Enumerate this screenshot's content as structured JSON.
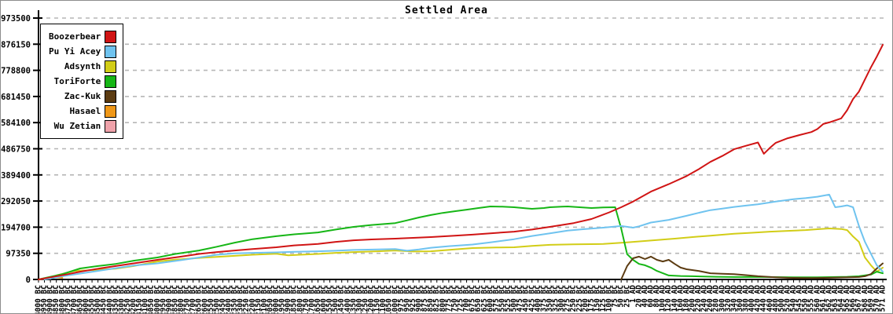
{
  "chart_data": {
    "type": "line",
    "title": "Settled Area",
    "xlabel": "",
    "ylabel": "",
    "ylim": [
      0,
      973500
    ],
    "grid": "horizontal-dashed",
    "legend_position": "top-left",
    "y_ticks": [
      0,
      97350,
      194700,
      292050,
      389400,
      486750,
      584100,
      681450,
      778800,
      876150,
      973500
    ],
    "y_tick_labels": [
      "0",
      "97350",
      "194700",
      "292050",
      "389400",
      "486750",
      "584100",
      "681450",
      "778800",
      "876150",
      "973500"
    ],
    "x_labels": [
      "4000 BC",
      "3950 BC",
      "3900 BC",
      "3850 BC",
      "3800 BC",
      "3750 BC",
      "3700 BC",
      "3650 BC",
      "3600 BC",
      "3550 BC",
      "3500 BC",
      "3450 BC",
      "3400 BC",
      "3350 BC",
      "3300 BC",
      "3250 BC",
      "3200 BC",
      "3150 BC",
      "3100 BC",
      "3050 BC",
      "3000 BC",
      "2950 BC",
      "2900 BC",
      "2850 BC",
      "2800 BC",
      "2750 BC",
      "2700 BC",
      "2650 BC",
      "2600 BC",
      "2550 BC",
      "2500 BC",
      "2450 BC",
      "2400 BC",
      "2350 BC",
      "2300 BC",
      "2250 BC",
      "2200 BC",
      "2150 BC",
      "2100 BC",
      "2050 BC",
      "2000 BC",
      "1950 BC",
      "1900 BC",
      "1850 BC",
      "1800 BC",
      "1750 BC",
      "1700 BC",
      "1650 BC",
      "1600 BC",
      "1550 BC",
      "1500 BC",
      "1450 BC",
      "1400 BC",
      "1350 BC",
      "1300 BC",
      "1250 BC",
      "1200 BC",
      "1150 BC",
      "1100 BC",
      "1050 BC",
      "1000 BC",
      "975 BC",
      "950 BC",
      "925 BC",
      "900 BC",
      "875 BC",
      "850 BC",
      "825 BC",
      "800 BC",
      "775 BC",
      "750 BC",
      "725 BC",
      "700 BC",
      "675 BC",
      "650 BC",
      "625 BC",
      "600 BC",
      "575 BC",
      "550 BC",
      "525 BC",
      "500 BC",
      "475 BC",
      "450 BC",
      "425 BC",
      "400 BC",
      "375 BC",
      "350 BC",
      "325 BC",
      "300 BC",
      "275 BC",
      "250 BC",
      "225 BC",
      "200 BC",
      "175 BC",
      "150 BC",
      "125 BC",
      "100 BC",
      "75 BC",
      "50 BC",
      "25 BC",
      "1 AD",
      "20 AD",
      "40 AD",
      "60 AD",
      "80 AD",
      "100 AD",
      "120 AD",
      "140 AD",
      "160 AD",
      "180 AD",
      "200 AD",
      "220 AD",
      "240 AD",
      "260 AD",
      "280 AD",
      "300 AD",
      "320 AD",
      "340 AD",
      "360 AD",
      "380 AD",
      "400 AD",
      "420 AD",
      "440 AD",
      "460 AD",
      "480 AD",
      "500 AD",
      "520 AD",
      "540 AD",
      "545 AD",
      "550 AD",
      "555 AD",
      "560 AD",
      "561 AD",
      "562 AD",
      "563 AD",
      "564 AD",
      "565 AD",
      "566 AD",
      "567 AD",
      "568 AD",
      "569 AD",
      "570 AD",
      "571 AD"
    ],
    "series": [
      {
        "name": "Wu Zetian",
        "color": "#efa2aa",
        "points": [
          [
            0,
            0
          ],
          [
            1,
            2000
          ],
          [
            2,
            3000
          ]
        ]
      },
      {
        "name": "Hasael",
        "color": "#f09818",
        "points": [
          [
            0,
            0
          ],
          [
            1,
            4000
          ],
          [
            2,
            7000
          ],
          [
            3,
            8000
          ],
          [
            4,
            6000
          ]
        ]
      },
      {
        "name": "Adsynth",
        "color": "#d2cd17",
        "points": [
          [
            1,
            0
          ],
          [
            3,
            15000
          ],
          [
            6,
            32000
          ],
          [
            10,
            36000
          ],
          [
            13,
            40000
          ],
          [
            16,
            50000
          ],
          [
            20,
            67000
          ],
          [
            23,
            74000
          ],
          [
            27,
            80000
          ],
          [
            30,
            84000
          ],
          [
            33,
            88000
          ],
          [
            36,
            92000
          ],
          [
            40,
            96000
          ],
          [
            42,
            90000
          ],
          [
            44,
            92000
          ],
          [
            47,
            95000
          ],
          [
            50,
            99000
          ],
          [
            53,
            102000
          ],
          [
            57,
            105000
          ],
          [
            60,
            108000
          ],
          [
            63,
            104000
          ],
          [
            66,
            105000
          ],
          [
            70,
            112000
          ],
          [
            73,
            117000
          ],
          [
            77,
            119000
          ],
          [
            80,
            120000
          ],
          [
            83,
            125000
          ],
          [
            86,
            129000
          ],
          [
            90,
            131000
          ],
          [
            95,
            132000
          ],
          [
            99,
            138000
          ],
          [
            103,
            145000
          ],
          [
            107,
            152000
          ],
          [
            110,
            158000
          ],
          [
            113,
            163000
          ],
          [
            117,
            170000
          ],
          [
            120,
            174000
          ],
          [
            123,
            178000
          ],
          [
            126,
            181000
          ],
          [
            129,
            184000
          ],
          [
            131,
            187000
          ],
          [
            133,
            190000
          ],
          [
            135,
            188000
          ],
          [
            136,
            184000
          ],
          [
            137,
            160000
          ],
          [
            138,
            140000
          ],
          [
            139,
            82000
          ],
          [
            140,
            53000
          ],
          [
            141,
            29000
          ],
          [
            142,
            44000
          ]
        ]
      },
      {
        "name": "ToriForte",
        "color": "#16b616",
        "points": [
          [
            0,
            0
          ],
          [
            2,
            10000
          ],
          [
            4,
            20000
          ],
          [
            7,
            41000
          ],
          [
            10,
            50000
          ],
          [
            13,
            58000
          ],
          [
            16,
            70000
          ],
          [
            20,
            82000
          ],
          [
            23,
            95000
          ],
          [
            27,
            108000
          ],
          [
            30,
            122000
          ],
          [
            33,
            137000
          ],
          [
            36,
            150000
          ],
          [
            40,
            161000
          ],
          [
            43,
            168000
          ],
          [
            47,
            175000
          ],
          [
            50,
            186000
          ],
          [
            53,
            196000
          ],
          [
            56,
            203000
          ],
          [
            60,
            210000
          ],
          [
            62,
            220000
          ],
          [
            64,
            231000
          ],
          [
            66,
            240000
          ],
          [
            68,
            248000
          ],
          [
            70,
            254000
          ],
          [
            72,
            260000
          ],
          [
            74,
            266000
          ],
          [
            76,
            272000
          ],
          [
            78,
            271000
          ],
          [
            80,
            269000
          ],
          [
            82,
            265000
          ],
          [
            83,
            263000
          ],
          [
            85,
            266000
          ],
          [
            86,
            269000
          ],
          [
            88,
            271000
          ],
          [
            89,
            272000
          ],
          [
            91,
            269000
          ],
          [
            93,
            266000
          ],
          [
            95,
            268000
          ],
          [
            97,
            269000
          ],
          [
            98,
            190000
          ],
          [
            99,
            94000
          ],
          [
            100,
            73000
          ],
          [
            101,
            58000
          ],
          [
            102,
            53000
          ],
          [
            103,
            44000
          ],
          [
            104,
            32000
          ],
          [
            106,
            15000
          ],
          [
            108,
            13000
          ],
          [
            110,
            12000
          ],
          [
            114,
            10000
          ],
          [
            117,
            9000
          ],
          [
            122,
            9000
          ],
          [
            127,
            8000
          ],
          [
            131,
            8000
          ],
          [
            134,
            9000
          ],
          [
            136,
            10000
          ],
          [
            138,
            12000
          ],
          [
            140,
            18000
          ],
          [
            141,
            29000
          ],
          [
            142,
            23000
          ]
        ]
      },
      {
        "name": "Zac-Kuk",
        "color": "#5c3c12",
        "points": [
          [
            98,
            0
          ],
          [
            99,
            50000
          ],
          [
            100,
            79000
          ],
          [
            101,
            85000
          ],
          [
            102,
            76000
          ],
          [
            103,
            85000
          ],
          [
            104,
            73000
          ],
          [
            105,
            67000
          ],
          [
            106,
            73000
          ],
          [
            107,
            58000
          ],
          [
            108,
            44000
          ],
          [
            109,
            38000
          ],
          [
            111,
            32000
          ],
          [
            113,
            23000
          ],
          [
            115,
            21000
          ],
          [
            117,
            20000
          ],
          [
            119,
            16000
          ],
          [
            121,
            12000
          ],
          [
            124,
            8000
          ],
          [
            126,
            6000
          ],
          [
            130,
            5000
          ],
          [
            133,
            6000
          ],
          [
            136,
            8000
          ],
          [
            138,
            9000
          ],
          [
            139,
            12000
          ],
          [
            140,
            20000
          ],
          [
            141,
            41000
          ],
          [
            142,
            60000
          ]
        ]
      },
      {
        "name": "Pu Yi Acey",
        "color": "#6fc3ef",
        "points": [
          [
            1,
            0
          ],
          [
            4,
            12000
          ],
          [
            7,
            22000
          ],
          [
            10,
            32000
          ],
          [
            13,
            42000
          ],
          [
            16,
            52000
          ],
          [
            20,
            60000
          ],
          [
            24,
            72000
          ],
          [
            27,
            82000
          ],
          [
            30,
            92000
          ],
          [
            33,
            97000
          ],
          [
            36,
            99000
          ],
          [
            40,
            101000
          ],
          [
            43,
            103000
          ],
          [
            47,
            105000
          ],
          [
            50,
            107000
          ],
          [
            53,
            110000
          ],
          [
            57,
            112000
          ],
          [
            60,
            113000
          ],
          [
            62,
            107000
          ],
          [
            64,
            112000
          ],
          [
            66,
            118000
          ],
          [
            69,
            124000
          ],
          [
            73,
            130000
          ],
          [
            76,
            138000
          ],
          [
            80,
            150000
          ],
          [
            83,
            162000
          ],
          [
            86,
            172000
          ],
          [
            89,
            182000
          ],
          [
            92,
            188000
          ],
          [
            95,
            193000
          ],
          [
            98,
            199000
          ],
          [
            100,
            193000
          ],
          [
            101,
            198000
          ],
          [
            103,
            212000
          ],
          [
            106,
            222000
          ],
          [
            109,
            237000
          ],
          [
            111,
            248000
          ],
          [
            113,
            258000
          ],
          [
            115,
            264000
          ],
          [
            117,
            270000
          ],
          [
            119,
            275000
          ],
          [
            121,
            280000
          ],
          [
            124,
            290000
          ],
          [
            127,
            299000
          ],
          [
            129,
            303000
          ],
          [
            131,
            308000
          ],
          [
            133,
            316000
          ],
          [
            134,
            269000
          ],
          [
            135,
            272000
          ],
          [
            136,
            276000
          ],
          [
            137,
            269000
          ],
          [
            138,
            199000
          ],
          [
            139,
            140000
          ],
          [
            140,
            96000
          ],
          [
            141,
            53000
          ],
          [
            142,
            29000
          ]
        ]
      },
      {
        "name": "Boozerbear",
        "color": "#d01414",
        "points": [
          [
            0,
            0
          ],
          [
            2,
            8000
          ],
          [
            5,
            20000
          ],
          [
            7,
            29000
          ],
          [
            10,
            40000
          ],
          [
            13,
            50000
          ],
          [
            16,
            60000
          ],
          [
            20,
            73000
          ],
          [
            24,
            85000
          ],
          [
            27,
            95000
          ],
          [
            30,
            102000
          ],
          [
            33,
            108000
          ],
          [
            36,
            113000
          ],
          [
            40,
            120000
          ],
          [
            43,
            127000
          ],
          [
            47,
            132000
          ],
          [
            50,
            140000
          ],
          [
            53,
            146000
          ],
          [
            56,
            149000
          ],
          [
            60,
            152000
          ],
          [
            63,
            155000
          ],
          [
            66,
            158000
          ],
          [
            70,
            163000
          ],
          [
            73,
            167000
          ],
          [
            76,
            172000
          ],
          [
            80,
            178000
          ],
          [
            83,
            186000
          ],
          [
            86,
            196000
          ],
          [
            90,
            210000
          ],
          [
            93,
            225000
          ],
          [
            96,
            250000
          ],
          [
            98,
            269000
          ],
          [
            100,
            290000
          ],
          [
            103,
            327000
          ],
          [
            106,
            355000
          ],
          [
            109,
            385000
          ],
          [
            111,
            410000
          ],
          [
            113,
            438000
          ],
          [
            115,
            460000
          ],
          [
            117,
            485000
          ],
          [
            119,
            498000
          ],
          [
            121,
            510000
          ],
          [
            122,
            468000
          ],
          [
            123,
            490000
          ],
          [
            124,
            509000
          ],
          [
            126,
            526000
          ],
          [
            128,
            538000
          ],
          [
            130,
            549000
          ],
          [
            131,
            560000
          ],
          [
            132,
            579000
          ],
          [
            133,
            585000
          ],
          [
            135,
            600000
          ],
          [
            136,
            630000
          ],
          [
            137,
            672000
          ],
          [
            138,
            700000
          ],
          [
            139,
            745000
          ],
          [
            140,
            790000
          ],
          [
            141,
            830000
          ],
          [
            142,
            874000
          ]
        ]
      }
    ]
  },
  "legend": {
    "items": [
      {
        "label": "Boozerbear",
        "color": "#d01414"
      },
      {
        "label": "Pu Yi Acey",
        "color": "#6fc3ef"
      },
      {
        "label": "Adsynth",
        "color": "#d2cd17"
      },
      {
        "label": "ToriForte",
        "color": "#16b616"
      },
      {
        "label": "Zac-Kuk",
        "color": "#5c3c12"
      },
      {
        "label": "Hasael",
        "color": "#f09818"
      },
      {
        "label": "Wu Zetian",
        "color": "#efa2aa"
      }
    ]
  }
}
